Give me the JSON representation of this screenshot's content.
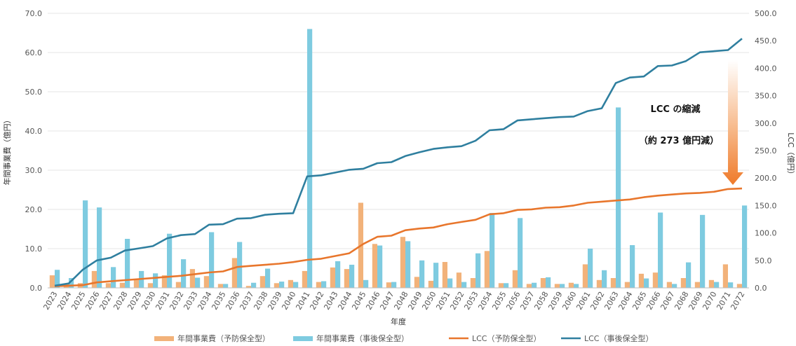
{
  "chart_data": {
    "type": "bar",
    "categories": [
      "2023",
      "2024",
      "2025",
      "2026",
      "2027",
      "2028",
      "2029",
      "2030",
      "2031",
      "2032",
      "2033",
      "2034",
      "2035",
      "2036",
      "2037",
      "2038",
      "2039",
      "2040",
      "2041",
      "2042",
      "2043",
      "2044",
      "2045",
      "2046",
      "2047",
      "2048",
      "2049",
      "2050",
      "2051",
      "2052",
      "2053",
      "2054",
      "2055",
      "2056",
      "2057",
      "2058",
      "2059",
      "2060",
      "2061",
      "2062",
      "2063",
      "2064",
      "2065",
      "2066",
      "2067",
      "2068",
      "2069",
      "2070",
      "2071",
      "2072"
    ],
    "xlabel": "年度",
    "ylabel": "年間事業費（億円）",
    "y2label": "LCC（億円）",
    "ylim": [
      0,
      70
    ],
    "y2lim": [
      0,
      500
    ],
    "yticks": [
      "0.0",
      "10.0",
      "20.0",
      "30.0",
      "40.0",
      "50.0",
      "60.0",
      "70.0"
    ],
    "y2ticks": [
      "0.0",
      "50.0",
      "100.0",
      "150.0",
      "200.0",
      "250.0",
      "300.0",
      "350.0",
      "400.0",
      "450.0",
      "500.0"
    ],
    "grid": true,
    "legend_position": "bottom",
    "series": [
      {
        "name": "年間事業費（予防保全型）",
        "kind": "bar",
        "color": "#f2b27a",
        "values": [
          3.2,
          1.0,
          1.2,
          4.3,
          1.2,
          1.3,
          2.3,
          1.2,
          3.2,
          1.5,
          4.8,
          3.0,
          1.0,
          7.6,
          0.5,
          3.0,
          1.2,
          2.0,
          4.3,
          1.5,
          5.2,
          4.8,
          21.7,
          11.2,
          1.4,
          13.0,
          2.8,
          1.8,
          6.6,
          3.9,
          2.5,
          9.4,
          1.2,
          4.5,
          1.0,
          2.5,
          1.0,
          1.3,
          6.0,
          2.0,
          2.5,
          1.5,
          3.6,
          3.9,
          1.5,
          2.5,
          1.5,
          2.0,
          6.0,
          1.0
        ]
      },
      {
        "name": "年間事業費（事後保全型）",
        "kind": "bar",
        "color": "#7ecbe0",
        "values": [
          4.6,
          2.5,
          22.3,
          20.5,
          5.3,
          12.5,
          4.3,
          3.7,
          13.8,
          7.3,
          2.6,
          14.2,
          1.0,
          11.7,
          1.3,
          4.9,
          1.6,
          1.5,
          66.0,
          1.7,
          6.8,
          5.9,
          2.0,
          10.8,
          1.5,
          11.9,
          7.0,
          6.4,
          2.4,
          1.5,
          8.8,
          19.1,
          1.2,
          17.8,
          1.3,
          2.7,
          1.0,
          1.0,
          10.0,
          4.5,
          46.0,
          10.9,
          2.4,
          19.2,
          1.0,
          6.5,
          18.6,
          1.5,
          1.4,
          21.0
        ]
      },
      {
        "name": "LCC（予防保全型）",
        "kind": "line",
        "color": "#e8762c",
        "values": [
          3,
          4,
          5,
          10,
          12,
          14,
          16,
          18,
          20,
          22,
          25,
          28,
          30,
          38,
          40,
          42,
          44,
          47,
          51,
          53,
          58,
          63,
          80,
          93,
          95,
          105,
          108,
          110,
          116,
          120,
          124,
          134,
          136,
          142,
          143,
          146,
          147,
          150,
          155,
          157,
          159,
          161,
          165,
          168,
          170,
          172,
          173,
          175,
          180,
          181
        ]
      },
      {
        "name": "LCC（事後保全型）",
        "kind": "line",
        "color": "#2f7f9f",
        "values": [
          4,
          8,
          33,
          50,
          55,
          68,
          72,
          76,
          90,
          96,
          98,
          115,
          116,
          126,
          127,
          133,
          135,
          136,
          203,
          205,
          210,
          215,
          217,
          227,
          229,
          240,
          247,
          253,
          256,
          258,
          268,
          287,
          289,
          305,
          307,
          309,
          311,
          312,
          322,
          327,
          373,
          383,
          385,
          404,
          405,
          413,
          429,
          431,
          433,
          454
        ]
      }
    ],
    "annotations": {
      "reduction_title": "LCC の縮減",
      "reduction_amount": "（約 273 億円減）"
    }
  }
}
